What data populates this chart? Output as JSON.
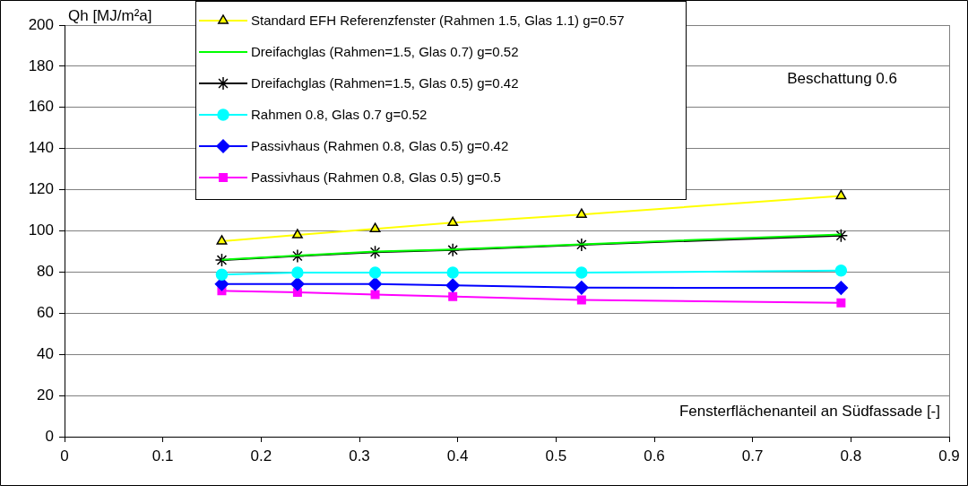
{
  "chart_data": {
    "type": "line",
    "ylabel": "Qh [MJ/m²a]",
    "xlabel": "Fensterflächenanteil an Südfassade [-]",
    "annotations": [
      "Beschattung 0.6"
    ],
    "x": [
      0.16,
      0.237,
      0.316,
      0.395,
      0.526,
      0.79
    ],
    "series": [
      {
        "name": "Standard EFH Referenzfenster (Rahmen 1.5, Glas 1.1) g=0.57",
        "color": "#ffff00",
        "marker": "triangle",
        "values": [
          95,
          98,
          101,
          104,
          108,
          117
        ]
      },
      {
        "name": "Dreifachglas (Rahmen=1.5, Glas 0.7) g=0.52",
        "color": "#00ff00",
        "marker": "none",
        "values": [
          86,
          88,
          90,
          91,
          93.5,
          98.3
        ]
      },
      {
        "name": "Dreifachglas (Rahmen=1.5, Glas 0.5) g=0.42",
        "color": "#000000",
        "marker": "cross",
        "values": [
          85.8,
          87.8,
          89.7,
          90.7,
          93.3,
          97.7
        ]
      },
      {
        "name": "Rahmen 0.8, Glas 0.7 g=0.52",
        "color": "#00ffff",
        "marker": "circle",
        "values": [
          78.8,
          79.7,
          79.7,
          79.7,
          79.7,
          80.7
        ]
      },
      {
        "name": "Passivhaus (Rahmen 0.8, Glas 0.5) g=0.42",
        "color": "#0000ff",
        "marker": "diamond",
        "values": [
          74.2,
          74.2,
          74.2,
          73.5,
          72.4,
          72.3
        ]
      },
      {
        "name": "Passivhaus (Rahmen 0.8, Glas 0.5) g=0.5",
        "color": "#ff00ff",
        "marker": "square",
        "values": [
          70.9,
          70.1,
          69.1,
          68.1,
          66.5,
          65
        ]
      }
    ],
    "xlim": [
      0,
      0.9
    ],
    "xticks": [
      0,
      0.1,
      0.2,
      0.3,
      0.4,
      0.5,
      0.6,
      0.7,
      0.8,
      0.9
    ],
    "ylim": [
      0,
      200
    ],
    "yticks": [
      0,
      20,
      40,
      60,
      80,
      100,
      120,
      140,
      160,
      180,
      200
    ],
    "grid": "y",
    "legend": "top"
  }
}
